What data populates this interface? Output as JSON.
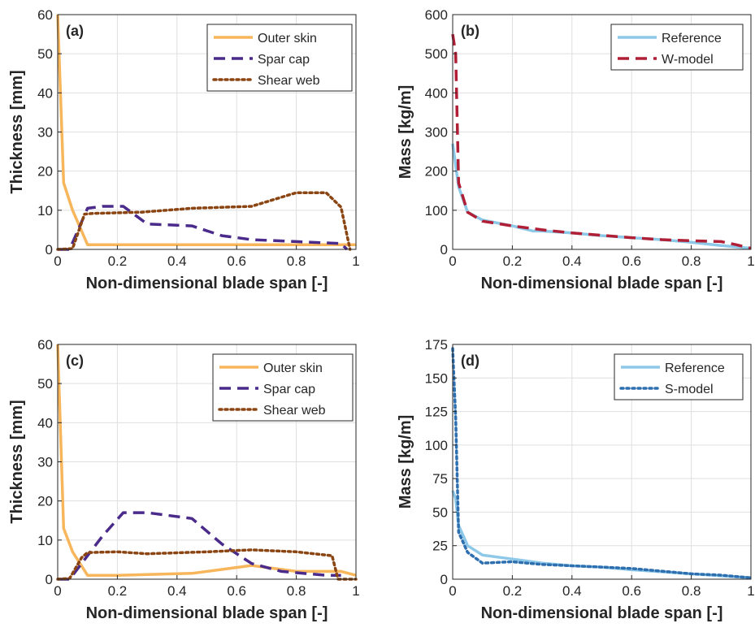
{
  "chart_data": [
    {
      "type": "line",
      "panel_label": "(a)",
      "xlabel": "Non-dimensional blade span [-]",
      "ylabel": "Thickness [mm]",
      "xlim": [
        0,
        1
      ],
      "ylim": [
        0,
        60
      ],
      "xticks": [
        0,
        0.2,
        0.4,
        0.6,
        0.8,
        1
      ],
      "xtick_labels": [
        "0",
        "0.2",
        "0.4",
        "0.6",
        "0.8",
        "1"
      ],
      "yticks": [
        0,
        10,
        20,
        30,
        40,
        50,
        60
      ],
      "ytick_labels": [
        "0",
        "10",
        "20",
        "30",
        "40",
        "50",
        "60"
      ],
      "grid": true,
      "legend_position": "top-right",
      "series": [
        {
          "name": "Outer skin",
          "color": "#f8b65c",
          "style": "solid",
          "x": [
            0,
            0.02,
            0.05,
            0.1,
            0.2,
            0.4,
            0.6,
            0.8,
            0.95,
            1
          ],
          "y": [
            60,
            17,
            10,
            1.2,
            1.2,
            1.2,
            1.2,
            1.2,
            1.2,
            1.2
          ]
        },
        {
          "name": "Spar cap",
          "color": "#4a2a8a",
          "style": "dashed",
          "x": [
            0,
            0.04,
            0.1,
            0.15,
            0.22,
            0.3,
            0.45,
            0.55,
            0.65,
            0.8,
            0.95,
            0.97
          ],
          "y": [
            0,
            0,
            10.5,
            11,
            11,
            6.5,
            6,
            3.5,
            2.5,
            2,
            1.5,
            0
          ]
        },
        {
          "name": "Shear web",
          "color": "#8b4513",
          "style": "dotted",
          "x": [
            0,
            0.05,
            0.09,
            0.12,
            0.28,
            0.45,
            0.65,
            0.8,
            0.9,
            0.95,
            0.98
          ],
          "y": [
            0,
            0.2,
            9,
            9.2,
            9.5,
            10.5,
            11,
            14.5,
            14.5,
            10.8,
            0
          ]
        }
      ]
    },
    {
      "type": "line",
      "panel_label": "(b)",
      "xlabel": "Non-dimensional blade span [-]",
      "ylabel": "Mass [kg/m]",
      "xlim": [
        0,
        1
      ],
      "ylim": [
        0,
        600
      ],
      "xticks": [
        0,
        0.2,
        0.4,
        0.6,
        0.8,
        1
      ],
      "xtick_labels": [
        "0",
        "0.2",
        "0.4",
        "0.6",
        "0.8",
        "1"
      ],
      "yticks": [
        0,
        100,
        200,
        300,
        400,
        500,
        600
      ],
      "ytick_labels": [
        "0",
        "100",
        "200",
        "300",
        "400",
        "500",
        "600"
      ],
      "grid": true,
      "legend_position": "top-right",
      "series": [
        {
          "name": "Reference",
          "color": "#8ec8e8",
          "style": "solid",
          "x": [
            0,
            0.02,
            0.05,
            0.1,
            0.2,
            0.27,
            0.3,
            0.4,
            0.5,
            0.6,
            0.7,
            0.8,
            0.9,
            1
          ],
          "y": [
            270,
            160,
            95,
            75,
            60,
            47,
            47,
            42,
            35,
            30,
            25,
            18,
            10,
            3
          ]
        },
        {
          "name": "W-model",
          "color": "#b01f35",
          "style": "dashed",
          "x": [
            0,
            0.01,
            0.02,
            0.05,
            0.1,
            0.2,
            0.3,
            0.4,
            0.5,
            0.6,
            0.7,
            0.8,
            0.9,
            0.95,
            1
          ],
          "y": [
            550,
            500,
            170,
            95,
            72,
            60,
            50,
            42,
            36,
            30,
            25,
            22,
            20,
            12,
            3
          ]
        }
      ]
    },
    {
      "type": "line",
      "panel_label": "(c)",
      "xlabel": "Non-dimensional blade span [-]",
      "ylabel": "Thickness [mm]",
      "xlim": [
        0,
        1
      ],
      "ylim": [
        0,
        60
      ],
      "xticks": [
        0,
        0.2,
        0.4,
        0.6,
        0.8,
        1
      ],
      "xtick_labels": [
        "0",
        "0.2",
        "0.4",
        "0.6",
        "0.8",
        "1"
      ],
      "yticks": [
        0,
        10,
        20,
        30,
        40,
        50,
        60
      ],
      "ytick_labels": [
        "0",
        "10",
        "20",
        "30",
        "40",
        "50",
        "60"
      ],
      "grid": true,
      "legend_position": "top-right",
      "series": [
        {
          "name": "Outer skin",
          "color": "#f8b65c",
          "style": "solid",
          "x": [
            0,
            0.02,
            0.05,
            0.1,
            0.2,
            0.3,
            0.45,
            0.55,
            0.65,
            0.8,
            0.95,
            1
          ],
          "y": [
            60,
            13,
            7,
            1,
            1,
            1.2,
            1.5,
            2.5,
            3.5,
            2,
            2,
            1
          ]
        },
        {
          "name": "Spar cap",
          "color": "#4a2a8a",
          "style": "dashed",
          "x": [
            0,
            0.04,
            0.1,
            0.15,
            0.22,
            0.3,
            0.45,
            0.55,
            0.65,
            0.75,
            0.9,
            0.95
          ],
          "y": [
            0,
            0,
            6,
            11,
            17,
            17,
            15.5,
            9,
            4,
            2,
            1,
            1
          ]
        },
        {
          "name": "Shear web",
          "color": "#8b4513",
          "style": "dotted",
          "x": [
            0,
            0.04,
            0.08,
            0.1,
            0.2,
            0.3,
            0.5,
            0.65,
            0.8,
            0.92,
            0.94,
            1
          ],
          "y": [
            0,
            0.2,
            5.5,
            6.8,
            7,
            6.5,
            7,
            7.5,
            7,
            6,
            0,
            0
          ]
        }
      ]
    },
    {
      "type": "line",
      "panel_label": "(d)",
      "xlabel": "Non-dimensional blade span [-]",
      "ylabel": "Mass [kg/m]",
      "xlim": [
        0,
        1
      ],
      "ylim": [
        0,
        175
      ],
      "xticks": [
        0,
        0.2,
        0.4,
        0.6,
        0.8,
        1
      ],
      "xtick_labels": [
        "0",
        "0.2",
        "0.4",
        "0.6",
        "0.8",
        "1"
      ],
      "yticks": [
        0,
        25,
        50,
        75,
        100,
        125,
        150,
        175
      ],
      "ytick_labels": [
        "0",
        "25",
        "50",
        "75",
        "100",
        "125",
        "150",
        "175"
      ],
      "grid": true,
      "legend_position": "top-right",
      "series": [
        {
          "name": "Reference",
          "color": "#8ec8e8",
          "style": "solid",
          "x": [
            0,
            0.01,
            0.02,
            0.05,
            0.1,
            0.2,
            0.3,
            0.4,
            0.5,
            0.6,
            0.7,
            0.8,
            0.9,
            1
          ],
          "y": [
            66,
            60,
            40,
            25,
            18,
            15,
            12,
            10,
            9,
            7,
            5.5,
            4,
            2.5,
            1
          ]
        },
        {
          "name": "S-model",
          "color": "#2e6fb0",
          "style": "dotted",
          "x": [
            0,
            0.01,
            0.02,
            0.05,
            0.1,
            0.2,
            0.3,
            0.4,
            0.5,
            0.6,
            0.7,
            0.8,
            0.9,
            1
          ],
          "y": [
            172,
            120,
            35,
            20,
            12,
            13,
            11,
            10,
            9,
            8,
            6,
            4,
            3,
            1
          ]
        }
      ]
    }
  ]
}
